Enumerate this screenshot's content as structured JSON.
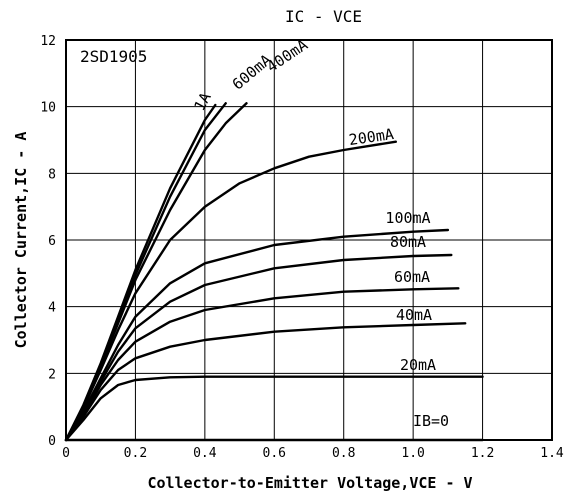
{
  "chart_data": {
    "type": "line",
    "title": "IC - VCE",
    "part_number": "2SD1905",
    "xlabel": "Collector-to-Emitter Voltage,VCE - V",
    "ylabel": "Collector Current,IC - A",
    "xlim": [
      0,
      1.4
    ],
    "ylim": [
      0,
      12
    ],
    "x_ticks": [
      "0",
      "0.2",
      "0.4",
      "0.6",
      "0.8",
      "1.0",
      "1.2",
      "1.4"
    ],
    "y_ticks": [
      "0",
      "2",
      "4",
      "6",
      "8",
      "10",
      "12"
    ],
    "grid": true,
    "series": [
      {
        "name": "IB=0",
        "x": [
          0,
          1.2
        ],
        "y": [
          0,
          0
        ]
      },
      {
        "name": "20mA",
        "x": [
          0,
          0.05,
          0.1,
          0.15,
          0.2,
          0.3,
          0.4,
          0.6,
          0.8,
          1.0,
          1.2
        ],
        "y": [
          0,
          0.6,
          1.25,
          1.65,
          1.8,
          1.88,
          1.9,
          1.9,
          1.9,
          1.9,
          1.9
        ]
      },
      {
        "name": "40mA",
        "x": [
          0,
          0.05,
          0.1,
          0.15,
          0.2,
          0.3,
          0.4,
          0.6,
          0.8,
          1.0,
          1.15
        ],
        "y": [
          0,
          0.7,
          1.5,
          2.1,
          2.45,
          2.8,
          3.0,
          3.25,
          3.38,
          3.45,
          3.5
        ]
      },
      {
        "name": "60mA",
        "x": [
          0,
          0.05,
          0.1,
          0.15,
          0.2,
          0.3,
          0.4,
          0.6,
          0.8,
          1.0,
          1.13
        ],
        "y": [
          0,
          0.75,
          1.65,
          2.4,
          2.95,
          3.55,
          3.9,
          4.25,
          4.45,
          4.52,
          4.55
        ]
      },
      {
        "name": "80mA",
        "x": [
          0,
          0.05,
          0.1,
          0.15,
          0.2,
          0.3,
          0.4,
          0.6,
          0.8,
          1.0,
          1.11
        ],
        "y": [
          0,
          0.8,
          1.75,
          2.65,
          3.35,
          4.15,
          4.65,
          5.15,
          5.4,
          5.52,
          5.55
        ]
      },
      {
        "name": "100mA",
        "x": [
          0,
          0.05,
          0.1,
          0.15,
          0.2,
          0.3,
          0.4,
          0.6,
          0.8,
          1.0,
          1.1
        ],
        "y": [
          0,
          0.85,
          1.85,
          2.85,
          3.7,
          4.7,
          5.3,
          5.85,
          6.1,
          6.25,
          6.3
        ]
      },
      {
        "name": "200mA",
        "x": [
          0,
          0.05,
          0.1,
          0.15,
          0.2,
          0.3,
          0.4,
          0.5,
          0.6,
          0.7,
          0.8,
          0.95
        ],
        "y": [
          0,
          0.95,
          2.1,
          3.3,
          4.4,
          6.0,
          7.0,
          7.7,
          8.15,
          8.5,
          8.7,
          8.95
        ]
      },
      {
        "name": "400mA",
        "x": [
          0,
          0.05,
          0.1,
          0.15,
          0.2,
          0.3,
          0.4,
          0.46,
          0.52
        ],
        "y": [
          0,
          1.0,
          2.2,
          3.5,
          4.8,
          6.9,
          8.7,
          9.5,
          10.1
        ]
      },
      {
        "name": "600mA",
        "x": [
          0,
          0.05,
          0.1,
          0.15,
          0.2,
          0.3,
          0.4,
          0.46
        ],
        "y": [
          0,
          1.0,
          2.25,
          3.6,
          4.95,
          7.3,
          9.3,
          10.1
        ]
      },
      {
        "name": "1A",
        "x": [
          0,
          0.05,
          0.1,
          0.15,
          0.2,
          0.3,
          0.4,
          0.43
        ],
        "y": [
          0,
          1.05,
          2.3,
          3.7,
          5.1,
          7.55,
          9.6,
          10.05
        ]
      }
    ],
    "labels": [
      {
        "text": "1A",
        "series": "1A"
      },
      {
        "text": "600mA",
        "series": "600mA"
      },
      {
        "text": "400mA",
        "series": "400mA"
      },
      {
        "text": "200mA",
        "series": "200mA"
      },
      {
        "text": "100mA",
        "series": "100mA"
      },
      {
        "text": "80mA",
        "series": "80mA"
      },
      {
        "text": "60mA",
        "series": "60mA"
      },
      {
        "text": "40mA",
        "series": "40mA"
      },
      {
        "text": "20mA",
        "series": "20mA"
      },
      {
        "text": "IB=0",
        "series": "IB=0"
      }
    ]
  }
}
